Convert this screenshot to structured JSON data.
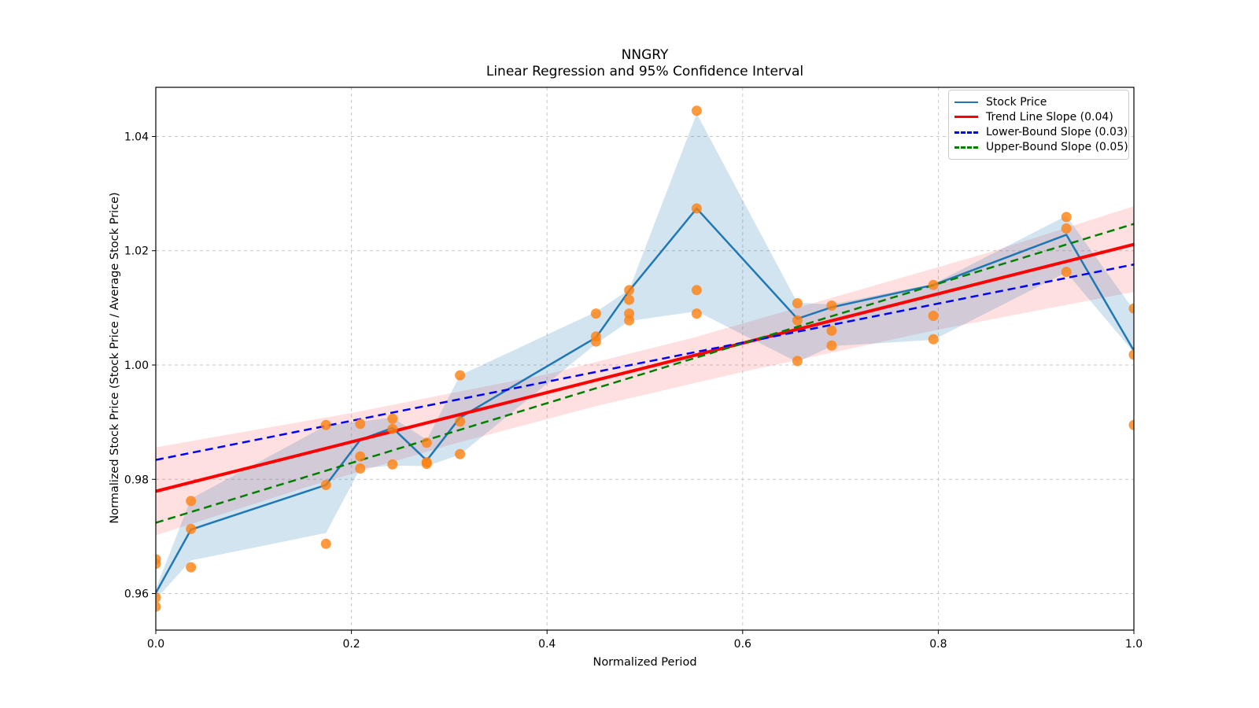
{
  "chart_data": {
    "type": "line",
    "title": "NNGRY",
    "subtitle": "Linear Regression and 95% Confidence Interval",
    "xlabel": "Normalized Period",
    "ylabel": "Normalized Stock Price (Stock Price / Average Stock Price)",
    "xlim": [
      0.0,
      1.0
    ],
    "ylim": [
      0.9536,
      1.0486
    ],
    "xticks": [
      0.0,
      0.2,
      0.4,
      0.6,
      0.8,
      1.0
    ],
    "xticklabels": [
      "0.0",
      "0.2",
      "0.4",
      "0.6",
      "0.8",
      "1.0"
    ],
    "yticks": [
      0.96,
      0.98,
      1.0,
      1.02,
      1.04
    ],
    "yticklabels": [
      "0.96",
      "0.98",
      "1.00",
      "1.02",
      "1.04"
    ],
    "grid": true,
    "grid_color": "#c9c9c9",
    "legend_position": "upper right",
    "legend": [
      {
        "label": "Stock Price",
        "color": "#1f77b4",
        "dash": "solid"
      },
      {
        "label": "Trend Line Slope (0.04)",
        "color": "#ff0000",
        "dash": "solid"
      },
      {
        "label": "Lower-Bound Slope (0.03)",
        "color": "#0000ff",
        "dash": "dashed"
      },
      {
        "label": "Upper-Bound Slope (0.05)",
        "color": "#008000",
        "dash": "dashed"
      }
    ],
    "series": [
      {
        "id": "trend-ci-band",
        "name": "Trend 95% CI",
        "type": "band",
        "color": "#ff0000",
        "opacity": 0.12,
        "upper": [
          [
            0.0,
            0.9856
          ],
          [
            0.2,
            0.9916
          ],
          [
            0.4,
            0.9984
          ],
          [
            0.55,
            1.0048
          ],
          [
            0.7,
            1.0122
          ],
          [
            0.85,
            1.0196
          ],
          [
            1.0,
            1.0278
          ]
        ],
        "lower": [
          [
            0.0,
            0.9702
          ],
          [
            0.15,
            0.9784
          ],
          [
            0.3,
            0.986
          ],
          [
            0.45,
            0.9928
          ],
          [
            0.6,
            0.9988
          ],
          [
            0.8,
            1.0062
          ],
          [
            1.0,
            1.0128
          ]
        ]
      },
      {
        "id": "stock-ci-band",
        "name": "Stock Price band",
        "type": "band",
        "color": "#1f77b4",
        "opacity": 0.2,
        "upper": [
          [
            0.0,
            0.9608
          ],
          [
            0.036,
            0.9766
          ],
          [
            0.174,
            0.9894
          ],
          [
            0.209,
            0.9901
          ],
          [
            0.242,
            0.9908
          ],
          [
            0.277,
            0.9869
          ],
          [
            0.311,
            0.9982
          ],
          [
            0.45,
            1.0093
          ],
          [
            0.484,
            1.0132
          ],
          [
            0.553,
            1.044
          ],
          [
            0.656,
            1.0109
          ],
          [
            0.691,
            1.0106
          ],
          [
            0.795,
            1.0142
          ],
          [
            0.931,
            1.0261
          ],
          [
            1.0,
            1.0096
          ]
        ],
        "lower": [
          [
            0.0,
            0.959
          ],
          [
            0.036,
            0.9658
          ],
          [
            0.174,
            0.9706
          ],
          [
            0.209,
            0.9819
          ],
          [
            0.242,
            0.9824
          ],
          [
            0.277,
            0.9823
          ],
          [
            0.311,
            0.9843
          ],
          [
            0.45,
            1.0037
          ],
          [
            0.484,
            1.0077
          ],
          [
            0.553,
            1.0094
          ],
          [
            0.656,
            1.0005
          ],
          [
            0.691,
            1.0033
          ],
          [
            0.795,
            1.0044
          ],
          [
            0.931,
            1.0162
          ],
          [
            1.0,
            1.0022
          ]
        ]
      },
      {
        "id": "stock-price-line",
        "name": "Stock Price",
        "type": "line",
        "color": "#1f77b4",
        "width": 2.5,
        "style": "solid",
        "points": [
          [
            0.0,
            0.9601
          ],
          [
            0.036,
            0.9712
          ],
          [
            0.174,
            0.979
          ],
          [
            0.209,
            0.9869
          ],
          [
            0.242,
            0.989
          ],
          [
            0.277,
            0.9833
          ],
          [
            0.311,
            0.9908
          ],
          [
            0.45,
            1.0048
          ],
          [
            0.484,
            1.013
          ],
          [
            0.553,
            1.0274
          ],
          [
            0.656,
            1.0081
          ],
          [
            0.691,
            1.0101
          ],
          [
            0.795,
            1.014
          ],
          [
            0.931,
            1.0228
          ],
          [
            1.0,
            1.0025
          ]
        ]
      },
      {
        "id": "trend-line",
        "name": "Trend Line Slope (0.04)",
        "type": "line",
        "color": "#ff0000",
        "width": 4,
        "style": "solid",
        "points": [
          [
            0.0,
            0.9779
          ],
          [
            1.0,
            1.0211
          ]
        ]
      },
      {
        "id": "lower-bound-line",
        "name": "Lower-Bound Slope (0.03)",
        "type": "line",
        "color": "#0000ff",
        "width": 2.5,
        "style": "dashed",
        "points": [
          [
            0.0,
            0.9834
          ],
          [
            1.0,
            1.0176
          ]
        ]
      },
      {
        "id": "upper-bound-line",
        "name": "Upper-Bound Slope (0.05)",
        "type": "line",
        "color": "#008000",
        "width": 2.5,
        "style": "dashed",
        "points": [
          [
            0.0,
            0.9724
          ],
          [
            1.0,
            1.0247
          ]
        ]
      },
      {
        "id": "scatter-points",
        "name": "Stock Price observations",
        "type": "scatter",
        "color": "#ff7f0e",
        "opacity": 0.8,
        "radius": 6.5,
        "points": [
          [
            0.0,
            0.966
          ],
          [
            0.0,
            0.9652
          ],
          [
            0.0,
            0.9593
          ],
          [
            0.0,
            0.9577
          ],
          [
            0.036,
            0.9762
          ],
          [
            0.036,
            0.9713
          ],
          [
            0.036,
            0.9646
          ],
          [
            0.174,
            0.9895
          ],
          [
            0.174,
            0.979
          ],
          [
            0.174,
            0.9687
          ],
          [
            0.209,
            0.9897
          ],
          [
            0.209,
            0.984
          ],
          [
            0.209,
            0.9819
          ],
          [
            0.242,
            0.9906
          ],
          [
            0.242,
            0.9888
          ],
          [
            0.242,
            0.9826
          ],
          [
            0.277,
            0.9864
          ],
          [
            0.277,
            0.983
          ],
          [
            0.277,
            0.9827
          ],
          [
            0.311,
            0.9982
          ],
          [
            0.311,
            0.9901
          ],
          [
            0.311,
            0.9844
          ],
          [
            0.45,
            1.009
          ],
          [
            0.45,
            1.005
          ],
          [
            0.45,
            1.0041
          ],
          [
            0.484,
            1.0131
          ],
          [
            0.484,
            1.0114
          ],
          [
            0.484,
            1.009
          ],
          [
            0.484,
            1.0078
          ],
          [
            0.553,
            1.0445
          ],
          [
            0.553,
            1.0274
          ],
          [
            0.553,
            1.0131
          ],
          [
            0.553,
            1.009
          ],
          [
            0.656,
            1.0108
          ],
          [
            0.656,
            1.0078
          ],
          [
            0.656,
            1.0007
          ],
          [
            0.691,
            1.0104
          ],
          [
            0.691,
            1.006
          ],
          [
            0.691,
            1.0034
          ],
          [
            0.795,
            1.014
          ],
          [
            0.795,
            1.0086
          ],
          [
            0.795,
            1.0045
          ],
          [
            0.931,
            1.0259
          ],
          [
            0.931,
            1.0239
          ],
          [
            0.931,
            1.0163
          ],
          [
            1.0,
            1.0099
          ],
          [
            1.0,
            1.0018
          ],
          [
            1.0,
            0.9895
          ]
        ]
      }
    ]
  }
}
